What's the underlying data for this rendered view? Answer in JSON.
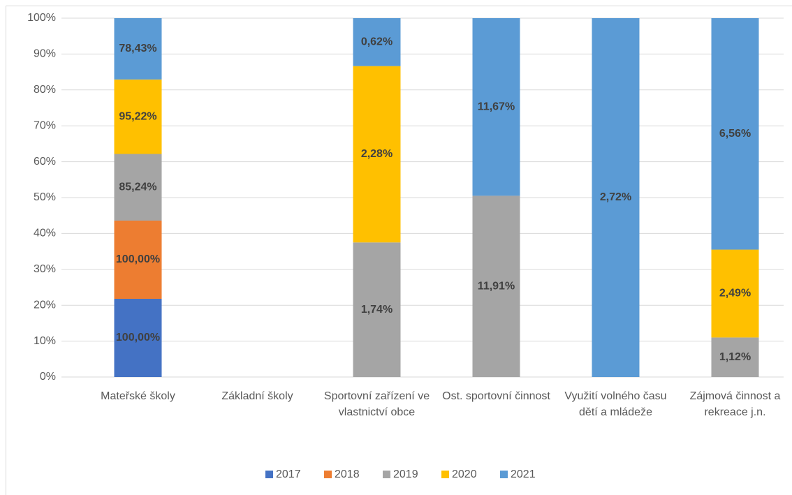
{
  "chart_data": {
    "type": "bar",
    "stacked": "percent",
    "categories": [
      "Mateřské školy",
      "Základní školy",
      "Sportovní zařízení ve vlastnictví obce",
      "Ost. sportovní činnost",
      "Využití volného času dětí a mládeže",
      "Zájmová činnost a rekreace j.n."
    ],
    "series": [
      {
        "name": "2017",
        "color": "#4472c4",
        "values": [
          100,
          null,
          null,
          null,
          null,
          null
        ],
        "value_labels": [
          "100,00%",
          null,
          null,
          null,
          null,
          null
        ]
      },
      {
        "name": "2018",
        "color": "#ed7d31",
        "values": [
          100,
          null,
          null,
          null,
          null,
          null
        ],
        "value_labels": [
          "100,00%",
          null,
          null,
          null,
          null,
          null
        ]
      },
      {
        "name": "2019",
        "color": "#a5a5a5",
        "values": [
          85.24,
          null,
          1.74,
          11.91,
          null,
          1.12
        ],
        "value_labels": [
          "85,24%",
          null,
          "1,74%",
          "11,91%",
          null,
          "1,12%"
        ]
      },
      {
        "name": "2020",
        "color": "#ffc000",
        "values": [
          95.22,
          null,
          2.28,
          null,
          null,
          2.49
        ],
        "value_labels": [
          "95,22%",
          null,
          "2,28%",
          null,
          null,
          "2,49%"
        ]
      },
      {
        "name": "2021",
        "color": "#5b9bd5",
        "values": [
          78.43,
          null,
          0.62,
          11.67,
          2.72,
          6.56
        ],
        "value_labels": [
          "78,43%",
          null,
          "0,62%",
          "11,67%",
          "2,72%",
          "6,56%"
        ]
      }
    ],
    "ylim": [
      0,
      100
    ],
    "yticks": [
      {
        "value": 0,
        "label": "0%"
      },
      {
        "value": 10,
        "label": "10%"
      },
      {
        "value": 20,
        "label": "20%"
      },
      {
        "value": 30,
        "label": "30%"
      },
      {
        "value": 40,
        "label": "40%"
      },
      {
        "value": 50,
        "label": "50%"
      },
      {
        "value": 60,
        "label": "60%"
      },
      {
        "value": 70,
        "label": "70%"
      },
      {
        "value": 80,
        "label": "80%"
      },
      {
        "value": 90,
        "label": "90%"
      },
      {
        "value": 100,
        "label": "100%"
      }
    ],
    "grid": true,
    "legend": "bottom"
  }
}
